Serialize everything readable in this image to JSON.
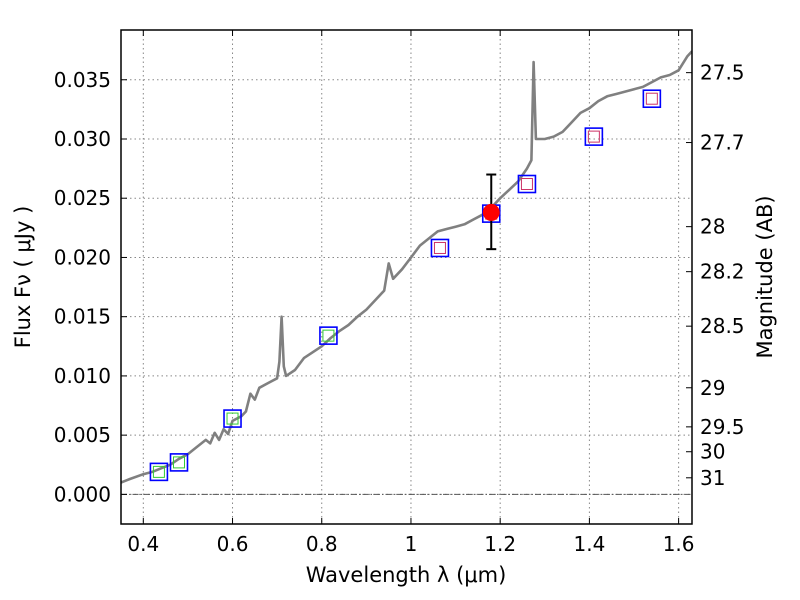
{
  "chart_data": {
    "type": "scatter",
    "title": "",
    "xlabel": "Wavelength  λ (μm)",
    "ylabel": "Flux  Fν  ( μJy )",
    "y2label": "Magnitude (AB)",
    "xlim": [
      0.35,
      1.63
    ],
    "ylim": [
      -0.0025,
      0.0392
    ],
    "grid": true,
    "x_ticks": [
      0.4,
      0.6,
      0.8,
      1.0,
      1.2,
      1.4,
      1.6
    ],
    "x_tick_labels": [
      "0.4",
      "0.6",
      "0.8",
      "1",
      "1.2",
      "1.4",
      "1.6"
    ],
    "y_ticks": [
      0.0,
      0.005,
      0.01,
      0.015,
      0.02,
      0.025,
      0.03,
      0.035
    ],
    "y_tick_labels": [
      "0.000",
      "0.005",
      "0.010",
      "0.015",
      "0.020",
      "0.025",
      "0.030",
      "0.035"
    ],
    "y2_ticks": [
      {
        "label": "27.5",
        "flux": 0.0356
      },
      {
        "label": "27.7",
        "flux": 0.0297
      },
      {
        "label": "28",
        "flux": 0.0226
      },
      {
        "label": "28.2",
        "flux": 0.0188
      },
      {
        "label": "28.5",
        "flux": 0.0142
      },
      {
        "label": "29",
        "flux": 0.009
      },
      {
        "label": "29.5",
        "flux": 0.0057
      },
      {
        "label": "30",
        "flux": 0.0036
      },
      {
        "label": "31",
        "flux": 0.0014
      }
    ],
    "colors": {
      "sed": "#808080",
      "measured": "#ff0000",
      "box_outer": "#0000ff",
      "box_inner_blue_bands": "#33cc33",
      "box_inner_red_bands": "#cc3366",
      "errorbar": "#000000",
      "grid": "#888888"
    },
    "series": [
      {
        "type": "line",
        "points": [
          [
            0.35,
            0.001
          ],
          [
            0.37,
            0.0013
          ],
          [
            0.4,
            0.0017
          ],
          [
            0.42,
            0.0019
          ],
          [
            0.44,
            0.0022
          ],
          [
            0.46,
            0.0025
          ],
          [
            0.48,
            0.003
          ],
          [
            0.5,
            0.0034
          ],
          [
            0.52,
            0.004
          ],
          [
            0.54,
            0.0046
          ],
          [
            0.55,
            0.0043
          ],
          [
            0.56,
            0.0052
          ],
          [
            0.57,
            0.0046
          ],
          [
            0.58,
            0.0055
          ],
          [
            0.59,
            0.0051
          ],
          [
            0.6,
            0.0062
          ],
          [
            0.62,
            0.0066
          ],
          [
            0.63,
            0.007
          ],
          [
            0.64,
            0.0085
          ],
          [
            0.65,
            0.008
          ],
          [
            0.66,
            0.009
          ],
          [
            0.68,
            0.0094
          ],
          [
            0.7,
            0.0098
          ],
          [
            0.705,
            0.0112
          ],
          [
            0.71,
            0.015
          ],
          [
            0.715,
            0.0108
          ],
          [
            0.72,
            0.01
          ],
          [
            0.74,
            0.0105
          ],
          [
            0.76,
            0.0115
          ],
          [
            0.78,
            0.012
          ],
          [
            0.8,
            0.0125
          ],
          [
            0.82,
            0.0132
          ],
          [
            0.84,
            0.0138
          ],
          [
            0.86,
            0.0143
          ],
          [
            0.88,
            0.015
          ],
          [
            0.9,
            0.0156
          ],
          [
            0.92,
            0.0164
          ],
          [
            0.94,
            0.0172
          ],
          [
            0.95,
            0.0195
          ],
          [
            0.96,
            0.0182
          ],
          [
            0.98,
            0.019
          ],
          [
            1.0,
            0.02
          ],
          [
            1.02,
            0.021
          ],
          [
            1.04,
            0.0216
          ],
          [
            1.06,
            0.0222
          ],
          [
            1.08,
            0.0224
          ],
          [
            1.1,
            0.0226
          ],
          [
            1.12,
            0.0228
          ],
          [
            1.14,
            0.0232
          ],
          [
            1.16,
            0.0236
          ],
          [
            1.18,
            0.0242
          ],
          [
            1.2,
            0.025
          ],
          [
            1.22,
            0.0257
          ],
          [
            1.24,
            0.0264
          ],
          [
            1.26,
            0.0275
          ],
          [
            1.27,
            0.0282
          ],
          [
            1.275,
            0.0365
          ],
          [
            1.28,
            0.03
          ],
          [
            1.3,
            0.03
          ],
          [
            1.32,
            0.0302
          ],
          [
            1.34,
            0.0306
          ],
          [
            1.36,
            0.0314
          ],
          [
            1.38,
            0.0322
          ],
          [
            1.4,
            0.0326
          ],
          [
            1.42,
            0.0332
          ],
          [
            1.44,
            0.0336
          ],
          [
            1.46,
            0.0338
          ],
          [
            1.48,
            0.034
          ],
          [
            1.5,
            0.0342
          ],
          [
            1.52,
            0.0344
          ],
          [
            1.54,
            0.0348
          ],
          [
            1.56,
            0.0352
          ],
          [
            1.58,
            0.0354
          ],
          [
            1.6,
            0.0358
          ],
          [
            1.62,
            0.037
          ],
          [
            1.63,
            0.0374
          ]
        ]
      },
      {
        "type": "scatter",
        "role": "model_bands",
        "points": [
          {
            "x": 0.435,
            "y": 0.0019,
            "inner": "green"
          },
          {
            "x": 0.48,
            "y": 0.0027,
            "inner": "green"
          },
          {
            "x": 0.6,
            "y": 0.0064,
            "inner": "green"
          },
          {
            "x": 0.815,
            "y": 0.0134,
            "inner": "green"
          },
          {
            "x": 1.065,
            "y": 0.0208,
            "inner": "red"
          },
          {
            "x": 1.18,
            "y": 0.0237,
            "inner": "red"
          },
          {
            "x": 1.26,
            "y": 0.0262,
            "inner": "red"
          },
          {
            "x": 1.41,
            "y": 0.0302,
            "inner": "red"
          },
          {
            "x": 1.54,
            "y": 0.0334,
            "inner": "red"
          }
        ]
      },
      {
        "type": "errorbar",
        "role": "measurement",
        "points": [
          {
            "x": 1.18,
            "y": 0.0238,
            "yerr_low": 0.0031,
            "yerr_high": 0.0032
          }
        ]
      }
    ]
  }
}
